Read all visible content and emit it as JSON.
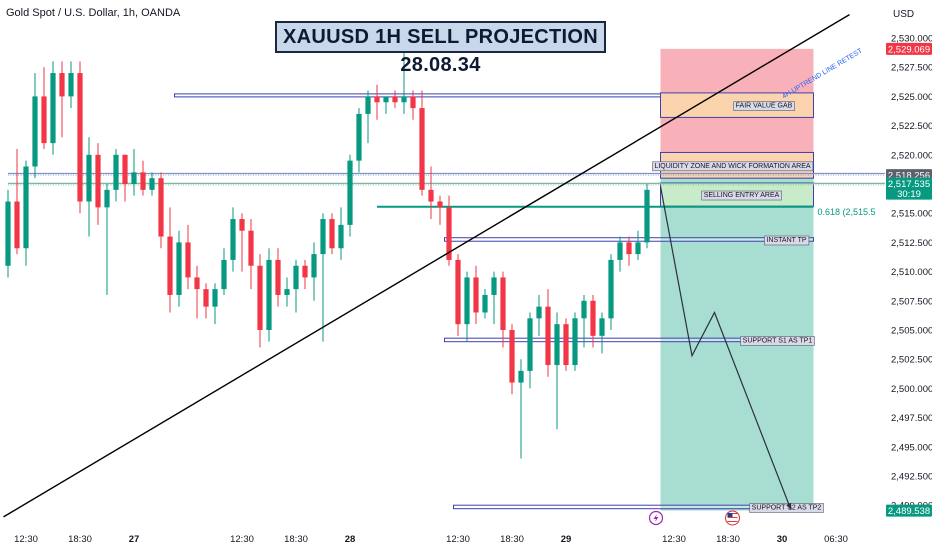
{
  "header": {
    "symbol": "Gold Spot / U.S. Dollar, 1h, OANDA",
    "title": "XAUUSD 1H SELL PROJECTION 28.08.34",
    "currency": "USD"
  },
  "colors": {
    "up": "#089981",
    "down": "#f23645",
    "stop_zone": "#f7a9b0",
    "target_zone": "#9fd9cc",
    "zone_border": "#3f3fb2",
    "price_badge_red": "#f23645",
    "price_badge_dark": "#5d606b",
    "price_badge_green": "#089981"
  },
  "chart_data": {
    "type": "candlestick",
    "title": "XAUUSD 1H SELL PROJECTION 28.08.34",
    "ylim": [
      2488.5,
      2531.5
    ],
    "y_ticks": [
      "2,530.000",
      "2,527.500",
      "2,525.000",
      "2,522.500",
      "2,520.000",
      "2,517.500",
      "2,515.000",
      "2,512.500",
      "2,510.000",
      "2,507.500",
      "2,505.000",
      "2,502.500",
      "2,500.000",
      "2,497.500",
      "2,495.000",
      "2,492.500",
      "2,490.000"
    ],
    "x_ticks": [
      {
        "label": "12:30",
        "i": 2,
        "bold": false
      },
      {
        "label": "18:30",
        "i": 8,
        "bold": false
      },
      {
        "label": "27",
        "i": 14,
        "bold": true
      },
      {
        "label": "12:30",
        "i": 26,
        "bold": false
      },
      {
        "label": "18:30",
        "i": 32,
        "bold": false
      },
      {
        "label": "28",
        "i": 38,
        "bold": true
      },
      {
        "label": "12:30",
        "i": 50,
        "bold": false
      },
      {
        "label": "18:30",
        "i": 56,
        "bold": false
      },
      {
        "label": "29",
        "i": 62,
        "bold": true
      },
      {
        "label": "12:30",
        "i": 74,
        "bold": false
      },
      {
        "label": "18:30",
        "i": 80,
        "bold": false
      },
      {
        "label": "30",
        "i": 86,
        "bold": true
      },
      {
        "label": "06:30",
        "i": 92,
        "bold": false
      }
    ],
    "candles": [
      [
        2510.5,
        2517.0,
        2509.5,
        2516.0
      ],
      [
        2516.0,
        2520.5,
        2511.5,
        2512.0
      ],
      [
        2512.0,
        2519.5,
        2510.5,
        2519.0
      ],
      [
        2519.0,
        2527.0,
        2518.0,
        2525.0
      ],
      [
        2525.0,
        2527.5,
        2520.5,
        2521.0
      ],
      [
        2521.0,
        2528.0,
        2520.0,
        2527.0
      ],
      [
        2527.0,
        2528.0,
        2521.5,
        2525.0
      ],
      [
        2525.0,
        2528.0,
        2524.0,
        2527.0
      ],
      [
        2527.0,
        2528.0,
        2515.0,
        2516.0
      ],
      [
        2516.0,
        2521.5,
        2513.0,
        2520.0
      ],
      [
        2520.0,
        2521.0,
        2514.0,
        2515.5
      ],
      [
        2515.5,
        2517.5,
        2508.0,
        2517.0
      ],
      [
        2517.0,
        2520.5,
        2516.0,
        2520.0
      ],
      [
        2520.0,
        2520.0,
        2516.0,
        2517.5
      ],
      [
        2517.5,
        2520.5,
        2516.5,
        2518.5
      ],
      [
        2518.5,
        2519.5,
        2516.5,
        2517.0
      ],
      [
        2517.0,
        2518.5,
        2516.5,
        2518.0
      ],
      [
        2518.0,
        2518.5,
        2512.0,
        2513.0
      ],
      [
        2513.0,
        2515.5,
        2506.5,
        2508.0
      ],
      [
        2508.0,
        2513.5,
        2507.0,
        2512.5
      ],
      [
        2512.5,
        2514.0,
        2508.5,
        2509.5
      ],
      [
        2509.5,
        2510.5,
        2506.0,
        2508.5
      ],
      [
        2508.5,
        2509.0,
        2506.0,
        2507.0
      ],
      [
        2507.0,
        2509.0,
        2505.5,
        2508.5
      ],
      [
        2508.5,
        2512.0,
        2508.0,
        2511.0
      ],
      [
        2511.0,
        2515.5,
        2510.0,
        2514.5
      ],
      [
        2514.5,
        2515.0,
        2510.0,
        2513.5
      ],
      [
        2513.5,
        2514.5,
        2508.5,
        2510.5
      ],
      [
        2510.5,
        2511.5,
        2503.5,
        2505.0
      ],
      [
        2505.0,
        2512.0,
        2504.0,
        2511.0
      ],
      [
        2511.0,
        2512.0,
        2507.0,
        2508.0
      ],
      [
        2508.0,
        2509.5,
        2507.0,
        2508.5
      ],
      [
        2508.5,
        2511.0,
        2506.5,
        2510.5
      ],
      [
        2510.5,
        2511.0,
        2508.5,
        2509.5
      ],
      [
        2509.5,
        2512.5,
        2507.5,
        2511.5
      ],
      [
        2511.5,
        2515.0,
        2504.0,
        2514.5
      ],
      [
        2514.5,
        2515.0,
        2511.5,
        2512.0
      ],
      [
        2512.0,
        2515.5,
        2511.0,
        2514.0
      ],
      [
        2514.0,
        2520.0,
        2513.0,
        2519.5
      ],
      [
        2519.5,
        2524.0,
        2518.5,
        2523.5
      ],
      [
        2523.5,
        2525.5,
        2521.0,
        2525.0
      ],
      [
        2525.0,
        2526.0,
        2523.0,
        2524.5
      ],
      [
        2524.5,
        2525.0,
        2523.5,
        2525.0
      ],
      [
        2525.0,
        2525.5,
        2524.0,
        2524.5
      ],
      [
        2524.5,
        2529.5,
        2523.5,
        2525.0
      ],
      [
        2525.0,
        2525.5,
        2523.0,
        2524.0
      ],
      [
        2524.0,
        2525.5,
        2516.5,
        2517.0
      ],
      [
        2517.0,
        2519.0,
        2514.5,
        2516.0
      ],
      [
        2516.0,
        2516.5,
        2514.0,
        2515.5
      ],
      [
        2515.5,
        2516.5,
        2510.5,
        2511.0
      ],
      [
        2511.0,
        2511.5,
        2504.5,
        2505.5
      ],
      [
        2505.5,
        2510.0,
        2504.0,
        2509.5
      ],
      [
        2509.5,
        2510.5,
        2505.5,
        2506.5
      ],
      [
        2506.5,
        2508.5,
        2506.0,
        2508.0
      ],
      [
        2508.0,
        2510.0,
        2505.5,
        2509.5
      ],
      [
        2509.5,
        2510.0,
        2503.5,
        2505.0
      ],
      [
        2505.0,
        2505.5,
        2499.5,
        2500.5
      ],
      [
        2500.5,
        2502.5,
        2494.0,
        2501.5
      ],
      [
        2501.5,
        2506.5,
        2500.0,
        2506.0
      ],
      [
        2506.0,
        2508.0,
        2504.5,
        2507.0
      ],
      [
        2507.0,
        2508.5,
        2501.0,
        2502.0
      ],
      [
        2502.0,
        2506.5,
        2496.5,
        2505.5
      ],
      [
        2505.5,
        2506.0,
        2501.5,
        2502.0
      ],
      [
        2502.0,
        2506.5,
        2501.5,
        2506.0
      ],
      [
        2506.0,
        2508.0,
        2503.5,
        2507.5
      ],
      [
        2507.5,
        2508.0,
        2503.5,
        2504.5
      ],
      [
        2504.5,
        2506.5,
        2503.0,
        2506.0
      ],
      [
        2506.0,
        2511.5,
        2505.0,
        2511.0
      ],
      [
        2511.0,
        2513.0,
        2510.0,
        2512.5
      ],
      [
        2512.5,
        2513.0,
        2510.5,
        2511.5
      ],
      [
        2511.5,
        2513.5,
        2511.0,
        2512.5
      ],
      [
        2512.5,
        2517.5,
        2512.0,
        2517.0
      ]
    ],
    "trendline": {
      "start": [
        -0.5,
        2489.0
      ],
      "end": [
        93.5,
        2532.0
      ],
      "label": "4H UPTREND LINE RETEST"
    },
    "ma_lines": [
      {
        "value": 2518.4,
        "color": "#7b8fc9",
        "from": 0,
        "to": 93
      },
      {
        "value": 2517.55,
        "color": "#7fb8a0",
        "from": 0,
        "to": 93
      }
    ],
    "fib_line": {
      "value": 2515.55,
      "from": 41.0,
      "to": 89.5,
      "label": "0.618 (2,515.5"
    },
    "position": {
      "x_start": 72.5,
      "x_end": 89.5,
      "entry": 2518.256,
      "stop": 2529.069,
      "target": 2489.538
    },
    "zones": [
      {
        "label": "FAIR VALUE GAB",
        "y_top": 2525.3,
        "y_bottom": 2523.2,
        "x_start": 72.5,
        "x_end": 89.5,
        "label_x": 84.0,
        "fill": "#fbd3ad",
        "extend_line_from": 18.5
      },
      {
        "label": "LIQUIDITY ZONE AND WICK FORMATION AREA",
        "y_top": 2520.2,
        "y_bottom": 2518.0,
        "x_start": 72.5,
        "x_end": 89.5,
        "label_x": 80.5,
        "fill": "#fbd3ad"
      },
      {
        "label": "SELLING ENTRY AREA",
        "y_top": 2517.6,
        "y_bottom": 2515.6,
        "x_start": 72.5,
        "x_end": 89.5,
        "label_x": 81.5,
        "fill": "#c8ecc9"
      },
      {
        "label": "INSTANT TP",
        "y_top": 2512.9,
        "y_bottom": 2512.6,
        "x_start": 48.5,
        "x_end": 89.5,
        "label_x": 86.5,
        "fill": "none"
      },
      {
        "label": "SUPPORT S1 AS TP1",
        "y_top": 2504.3,
        "y_bottom": 2504.0,
        "x_start": 48.5,
        "x_end": 89.5,
        "label_x": 85.5,
        "fill": "none"
      },
      {
        "label": "SUPPORT S2 AS TP2",
        "y_top": 2490.0,
        "y_bottom": 2489.7,
        "x_start": 49.5,
        "x_end": 89.5,
        "label_x": 86.5,
        "fill": "none"
      }
    ],
    "projection": [
      [
        72.5,
        2517.3
      ],
      [
        76.0,
        2502.8
      ],
      [
        78.5,
        2506.5
      ],
      [
        87.0,
        2489.6
      ]
    ],
    "price_badges": [
      {
        "label": "2,529.069",
        "value": 2529.069,
        "color": "#f23645"
      },
      {
        "label": "2,518.256",
        "value": 2518.256,
        "color": "#5d606b"
      },
      {
        "label": "2,517.535",
        "value": 2517.535,
        "color": "#089981",
        "sub": "30:19"
      },
      {
        "label": "2,489.538",
        "value": 2489.538,
        "color": "#089981"
      }
    ],
    "event_markers": [
      {
        "icon": "lightning-icon",
        "i": 72.0
      },
      {
        "icon": "us-flag-icon",
        "i": 80.5
      }
    ]
  }
}
